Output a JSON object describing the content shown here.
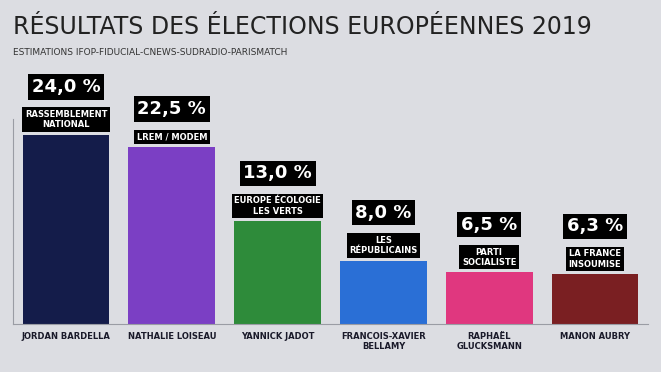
{
  "chart_data": {
    "type": "bar",
    "title": "RÉSULTATS DES ÉLECTIONS EUROPÉENNES 2019",
    "subtitle": "ESTIMATIONS IFOP-FIDUCIAL-CNEWS-SUDRADIO-PARISMATCH",
    "categories": [
      "RASSEMBLEMENT NATIONAL",
      "LREM / MODEM",
      "EUROPE ÉCOLOGIE LES VERTS",
      "LES RÉPUBLICAINS",
      "PARTI SOCIALISTE",
      "LA FRANCE INSOUMISE"
    ],
    "candidates": [
      "JORDAN BARDELLA",
      "NATHALIE LOISEAU",
      "YANNICK JADOT",
      "FRANCOIS-XAVIER BELLAMY",
      "RAPHAËL GLUCKSMANN",
      "MANON AUBRY"
    ],
    "values": [
      24.0,
      22.5,
      13.0,
      8.0,
      6.5,
      6.3
    ],
    "value_labels": [
      "24,0 %",
      "22,5 %",
      "13,0 %",
      "8,0 %",
      "6,5 %",
      "6,3 %"
    ],
    "colors": [
      "#141c4a",
      "#7b3fc4",
      "#2e8b3a",
      "#2a6fd6",
      "#e0377f",
      "#7a1f22"
    ],
    "ylim": [
      0,
      26
    ],
    "yticks": [],
    "data_labels": true,
    "tick_labels": false
  }
}
